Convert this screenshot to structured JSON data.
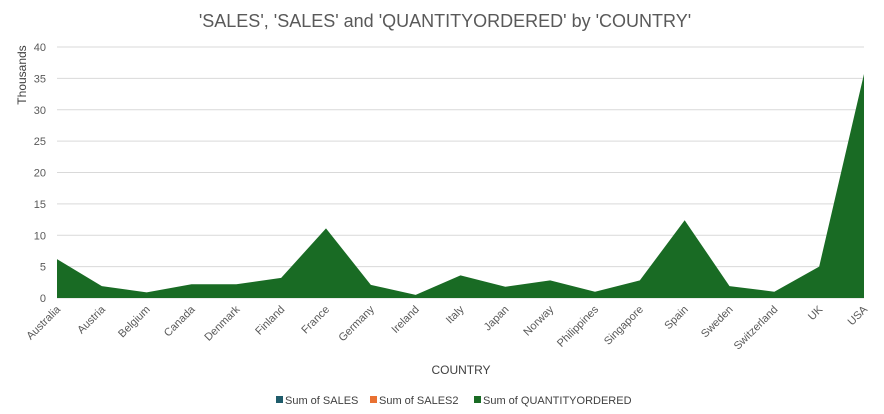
{
  "chart_data": {
    "type": "area",
    "title": "'SALES', 'SALES' and 'QUANTITYORDERED' by 'COUNTRY'",
    "xlabel": "COUNTRY",
    "ylabel": "Thousands",
    "ylim": [
      0,
      40
    ],
    "yticks": [
      "0",
      "5",
      "10",
      "15",
      "20",
      "25",
      "30",
      "35",
      "40"
    ],
    "grid": true,
    "legend_position": "bottom",
    "categories": [
      "Australia",
      "Austria",
      "Belgium",
      "Canada",
      "Denmark",
      "Finland",
      "France",
      "Germany",
      "Ireland",
      "Italy",
      "Japan",
      "Norway",
      "Philippines",
      "Singapore",
      "Spain",
      "Sweden",
      "Switzerland",
      "UK",
      "USA"
    ],
    "series": [
      {
        "name": "Sum of SALES",
        "color": "#1f5c6b",
        "values": [
          null,
          null,
          null,
          null,
          null,
          null,
          null,
          null,
          null,
          null,
          null,
          null,
          null,
          null,
          null,
          null,
          null,
          null,
          null
        ]
      },
      {
        "name": "Sum of SALES2",
        "color": "#e97132",
        "values": [
          null,
          null,
          null,
          null,
          null,
          null,
          null,
          null,
          null,
          null,
          null,
          null,
          null,
          null,
          null,
          null,
          null,
          null,
          null
        ]
      },
      {
        "name": "Sum of QUANTITYORDERED",
        "color": "#196b24",
        "values": [
          6.2,
          1.9,
          0.9,
          2.2,
          2.2,
          3.2,
          11.1,
          2.1,
          0.5,
          3.6,
          1.8,
          2.8,
          1.0,
          2.8,
          12.4,
          1.9,
          1.0,
          5.0,
          35.7
        ]
      }
    ]
  }
}
